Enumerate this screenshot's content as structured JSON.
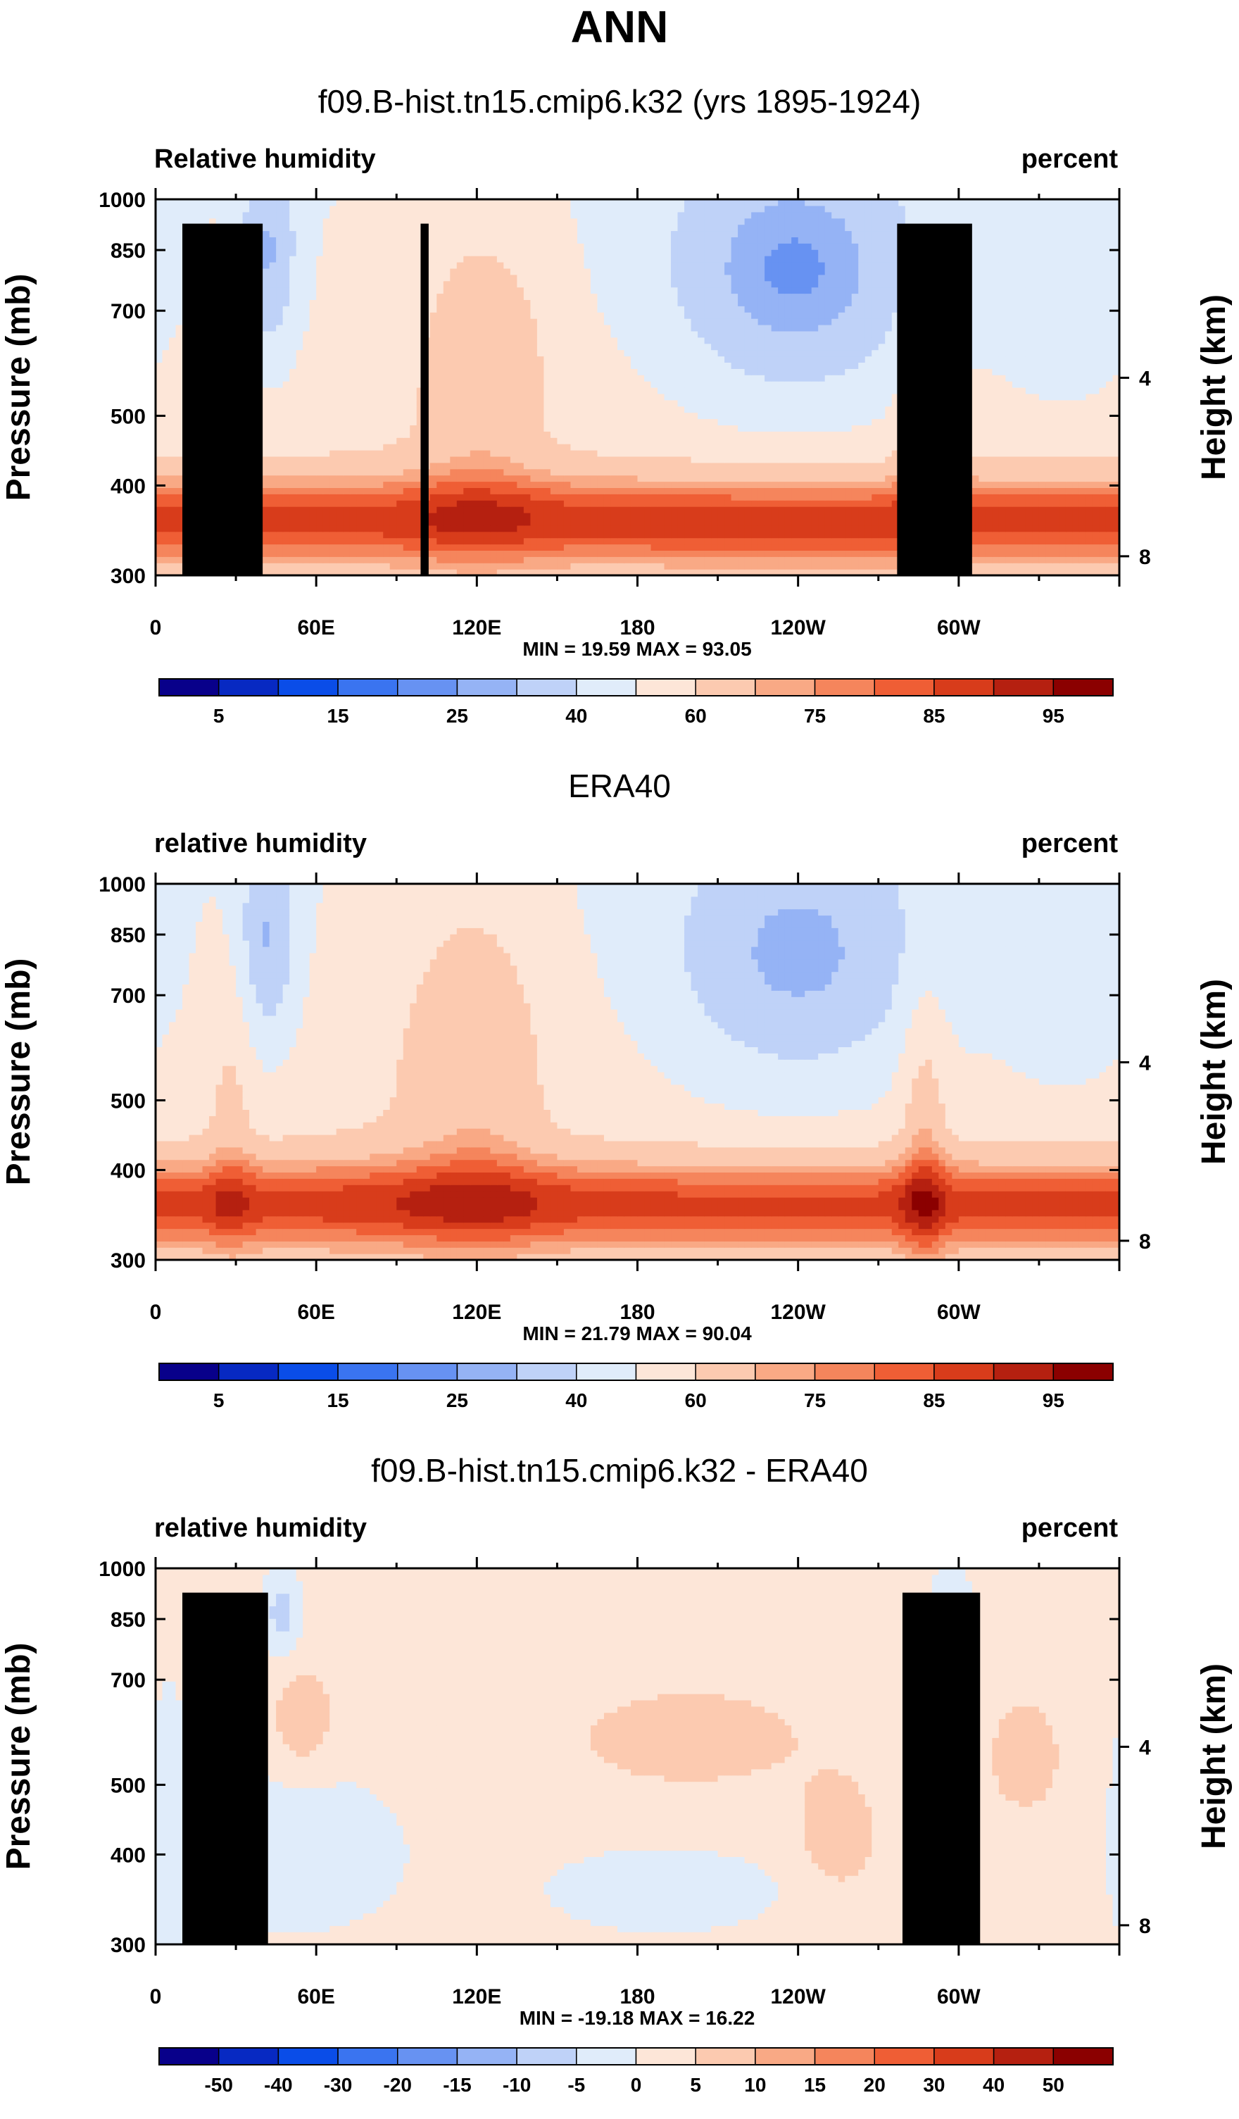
{
  "main_title": "ANN",
  "chart_data": [
    {
      "type": "heatmap",
      "title": "f09.B-hist.tn15.cmip6.k32 (yrs 1895-1924)",
      "left_label": "Relative humidity",
      "right_label": "percent",
      "ylabel": "Pressure (mb)",
      "ylabel_right": "Height (km)",
      "y_ticks": [
        "300",
        "400",
        "500",
        "700",
        "850",
        "1000"
      ],
      "y_right_ticks": [
        "8",
        "4"
      ],
      "x_ticks": [
        "0",
        "60E",
        "120E",
        "180",
        "120W",
        "60W"
      ],
      "min_max_label": "MIN = 19.59  MAX = 93.05",
      "min": 19.59,
      "max": 93.05,
      "colorbar_labels": [
        "5",
        "15",
        "25",
        "40",
        "60",
        "75",
        "85",
        "95"
      ],
      "colors": [
        "#08008a",
        "#0729c2",
        "#0a4de8",
        "#3a74f0",
        "#6792f2",
        "#95b3f5",
        "#bfd2f8",
        "#e0ecfa",
        "#fde6d8",
        "#fccab0",
        "#f9a985",
        "#f5855c",
        "#ef5e35",
        "#d83c1b",
        "#b52010",
        "#8b0000"
      ],
      "topography": [
        {
          "lon": 10,
          "lon2": 40,
          "p": 925
        },
        {
          "lon": 27,
          "lon2": 34,
          "p": 850
        },
        {
          "lon": 99,
          "lon2": 102,
          "p": 925
        },
        {
          "lon": 277,
          "lon2": 305,
          "p": 925
        }
      ]
    },
    {
      "type": "heatmap",
      "title": "ERA40",
      "left_label": "relative humidity",
      "right_label": "percent",
      "ylabel": "Pressure (mb)",
      "ylabel_right": "Height (km)",
      "y_ticks": [
        "300",
        "400",
        "500",
        "700",
        "850",
        "1000"
      ],
      "y_right_ticks": [
        "8",
        "4"
      ],
      "x_ticks": [
        "0",
        "60E",
        "120E",
        "180",
        "120W",
        "60W"
      ],
      "min_max_label": "MIN = 21.79  MAX = 90.04",
      "min": 21.79,
      "max": 90.04,
      "colorbar_labels": [
        "5",
        "15",
        "25",
        "40",
        "60",
        "75",
        "85",
        "95"
      ],
      "colors": [
        "#08008a",
        "#0729c2",
        "#0a4de8",
        "#3a74f0",
        "#6792f2",
        "#95b3f5",
        "#bfd2f8",
        "#e0ecfa",
        "#fde6d8",
        "#fccab0",
        "#f9a985",
        "#f5855c",
        "#ef5e35",
        "#d83c1b",
        "#b52010",
        "#8b0000"
      ],
      "topography": []
    },
    {
      "type": "heatmap",
      "title": "f09.B-hist.tn15.cmip6.k32 - ERA40",
      "left_label": "relative humidity",
      "right_label": "percent",
      "ylabel": "Pressure (mb)",
      "ylabel_right": "Height (km)",
      "y_ticks": [
        "300",
        "400",
        "500",
        "700",
        "850",
        "1000"
      ],
      "y_right_ticks": [
        "8",
        "4"
      ],
      "x_ticks": [
        "0",
        "60E",
        "120E",
        "180",
        "120W",
        "60W"
      ],
      "min_max_label": "MIN = -19.18  MAX = 16.22",
      "min": -19.18,
      "max": 16.22,
      "colorbar_labels": [
        "-50",
        "-40",
        "-30",
        "-20",
        "-15",
        "-10",
        "-5",
        "0",
        "5",
        "10",
        "15",
        "20",
        "30",
        "40",
        "50"
      ],
      "colors": [
        "#08008a",
        "#0729c2",
        "#0a4de8",
        "#3a74f0",
        "#6792f2",
        "#95b3f5",
        "#bfd2f8",
        "#e0ecfa",
        "#fde6d8",
        "#fccab0",
        "#f9a985",
        "#f5855c",
        "#ef5e35",
        "#d83c1b",
        "#b52010",
        "#8b0000"
      ],
      "topography": [
        {
          "lon": 10,
          "lon2": 42,
          "p": 925
        },
        {
          "lon": 27,
          "lon2": 34,
          "p": 850
        },
        {
          "lon": 279,
          "lon2": 308,
          "p": 925
        }
      ]
    }
  ]
}
